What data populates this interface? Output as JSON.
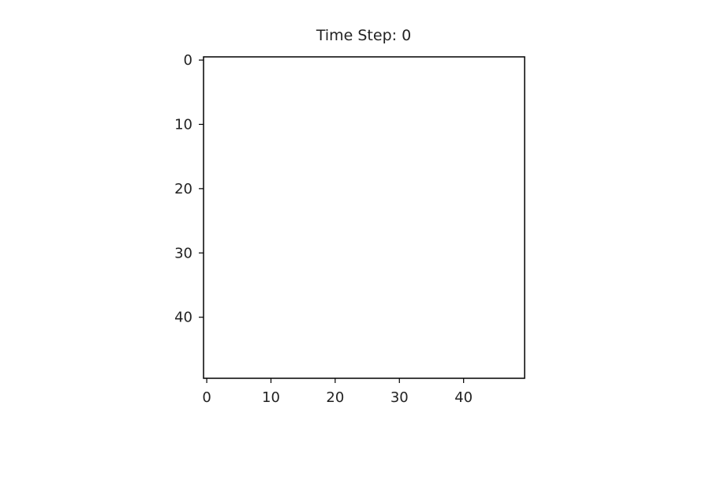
{
  "chart_data": {
    "type": "heatmap",
    "title": "Time Step: 0",
    "xlabel": "",
    "ylabel": "",
    "xlim": [
      -0.5,
      49.5
    ],
    "ylim": [
      -0.5,
      49.5
    ],
    "y_inverted": true,
    "x_ticks": [
      0,
      10,
      20,
      30,
      40
    ],
    "y_ticks": [
      0,
      10,
      20,
      30,
      40
    ],
    "x_tick_labels": [
      "0",
      "10",
      "20",
      "30",
      "40"
    ],
    "y_tick_labels": [
      "0",
      "10",
      "20",
      "30",
      "40"
    ],
    "grid": false,
    "legend": "none",
    "image_fill": "#ffffff",
    "axis_color": "#000000"
  }
}
